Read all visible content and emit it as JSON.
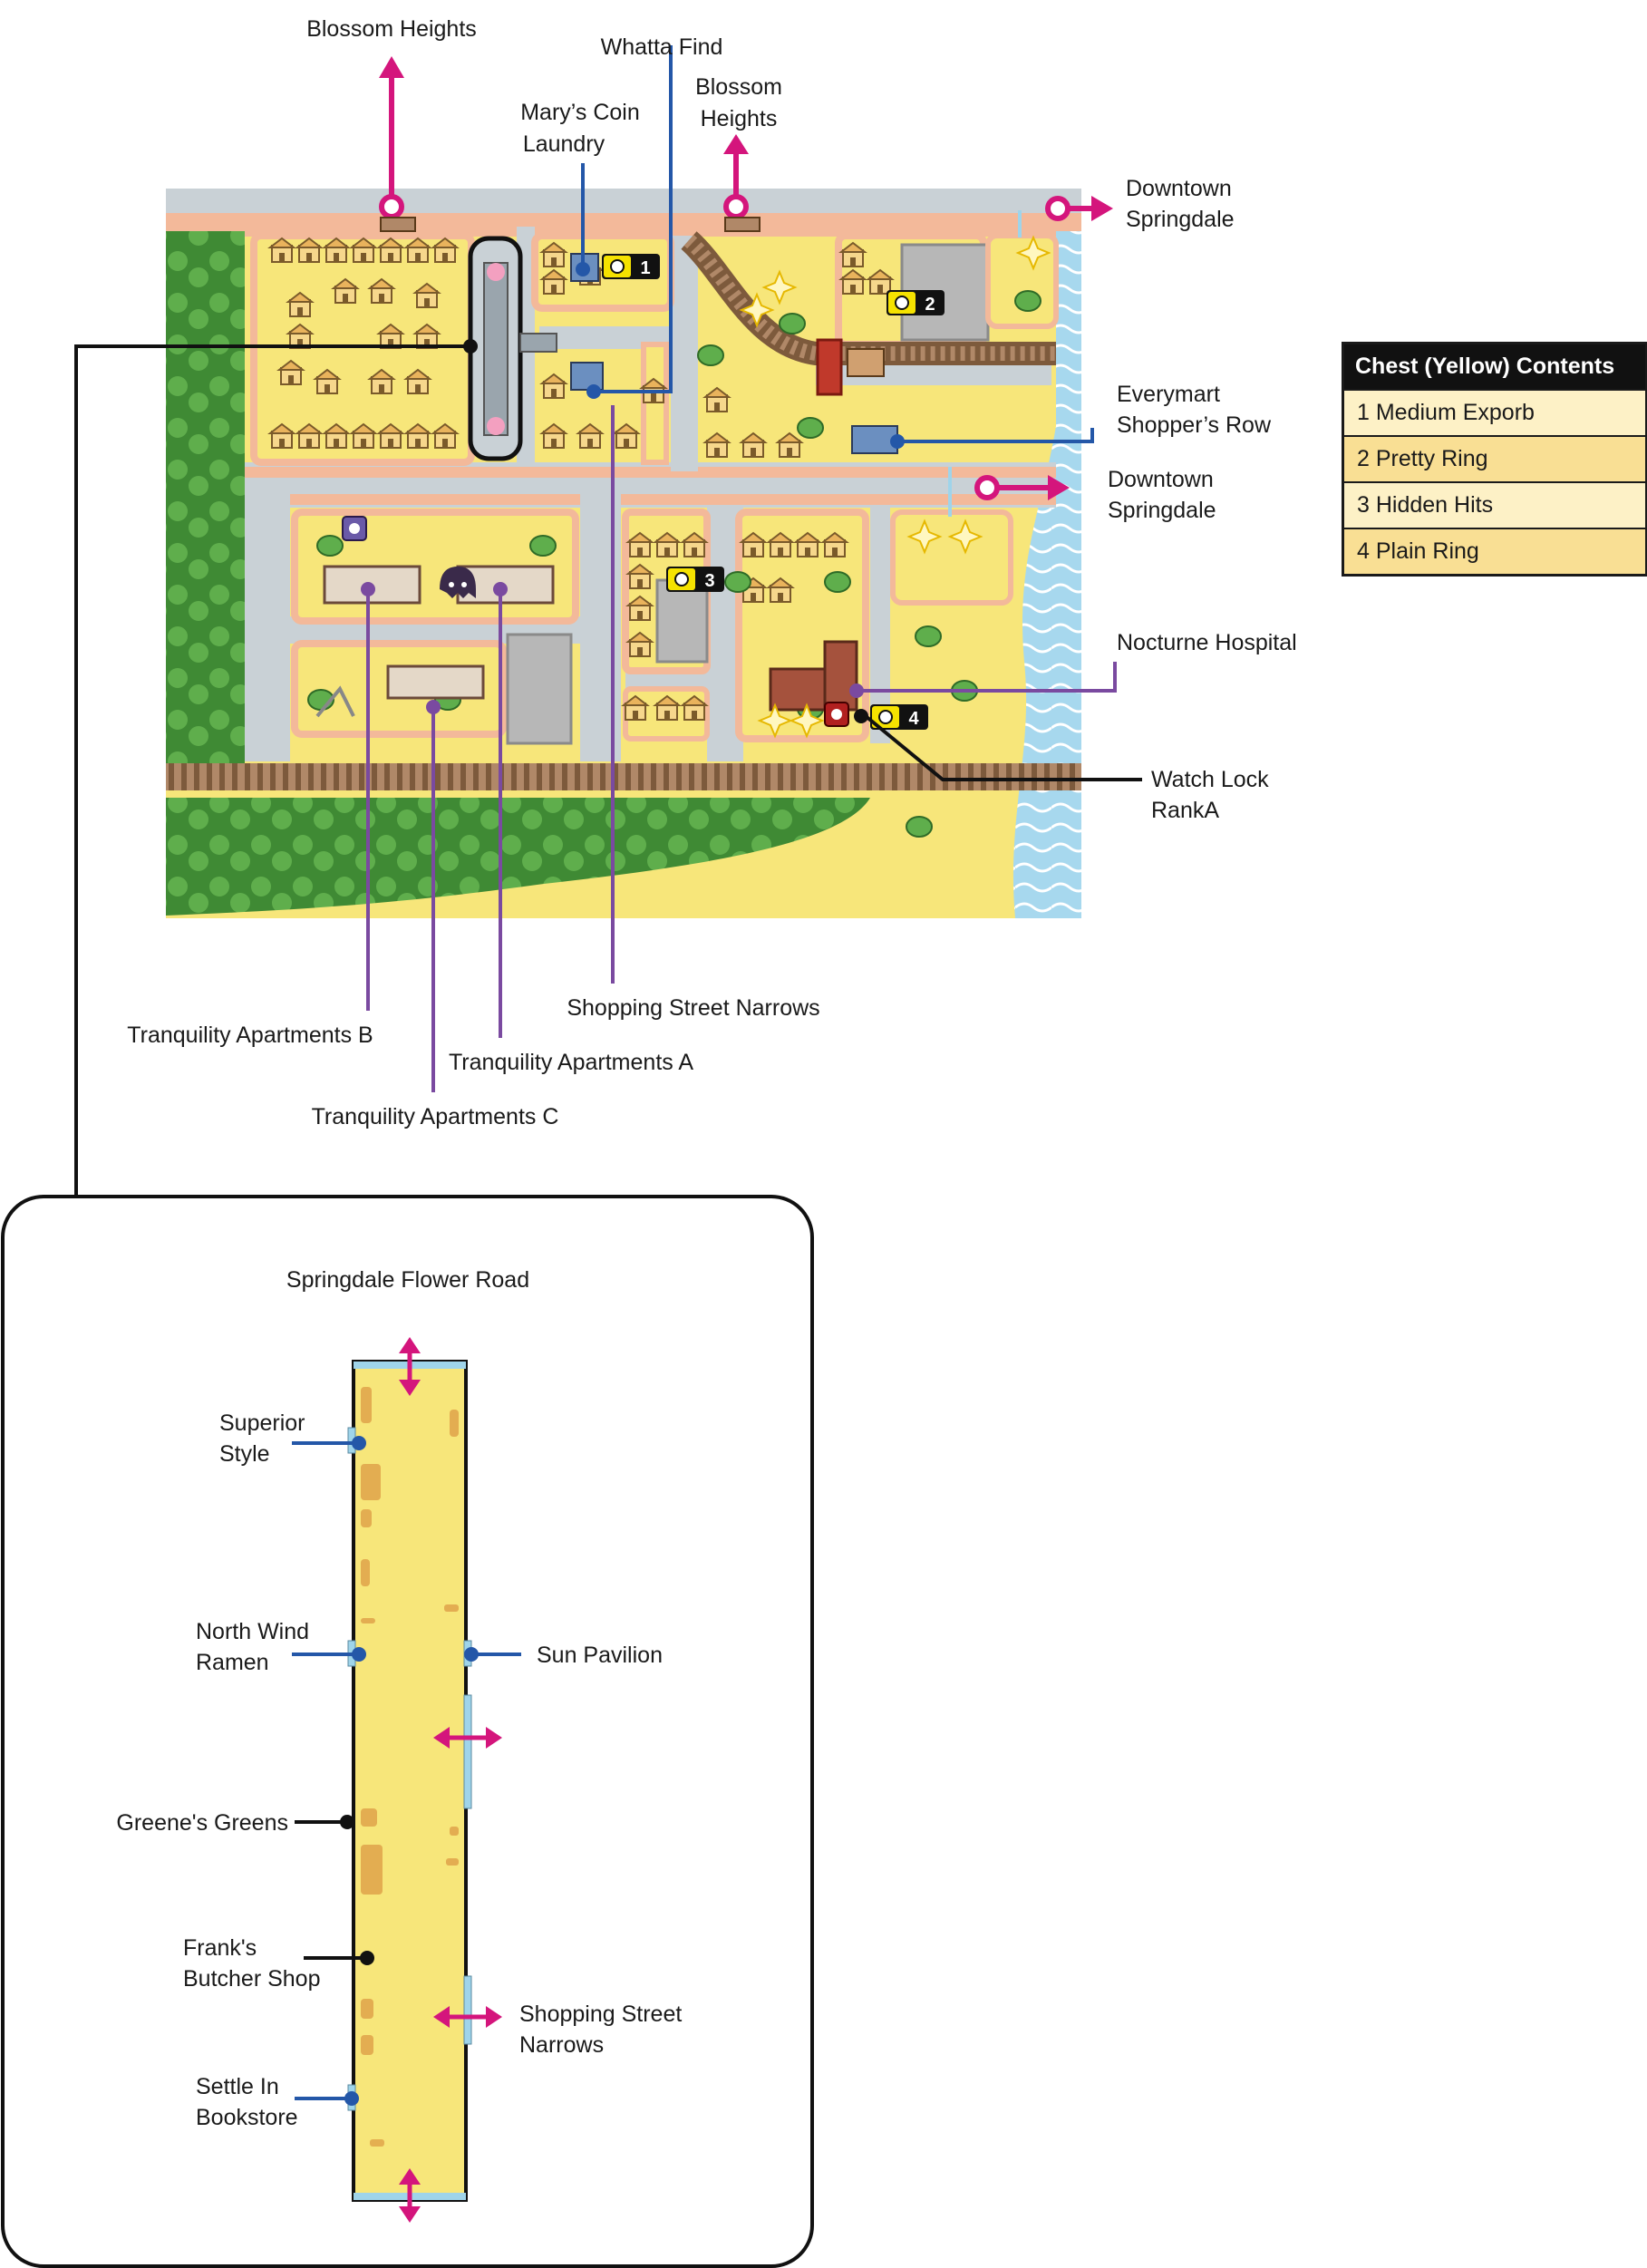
{
  "map": {
    "labels": {
      "blossom_heights_left": "Blossom Heights",
      "whatta_find": "Whatta Find",
      "blossom_heights_mid_1": "Blossom",
      "blossom_heights_mid_2": "Heights",
      "marys_coin_1": "Mary’s Coin",
      "marys_coin_2": "Laundry",
      "downtown_top_1": "Downtown",
      "downtown_top_2": "Springdale",
      "everymart_1": "Everymart",
      "everymart_2": "Shopper’s Row",
      "downtown_mid_1": "Downtown",
      "downtown_mid_2": "Springdale",
      "nocturne_hospital": "Nocturne Hospital",
      "watch_lock_1": "Watch Lock",
      "watch_lock_2": "RankA",
      "shopping_street_narrows": "Shopping Street Narrows",
      "tranquility_b": "Tranquility Apartments B",
      "tranquility_a": "Tranquility Apartments A",
      "tranquility_c": "Tranquility Apartments C"
    },
    "chests": [
      "1",
      "2",
      "3",
      "4"
    ]
  },
  "inset": {
    "title": "Springdale Flower Road",
    "labels": {
      "superior_1": "Superior",
      "superior_2": "Style",
      "north_wind_1": "North Wind",
      "north_wind_2": "Ramen",
      "sun_pavilion": "Sun Pavilion",
      "greenes": "Greene's Greens",
      "franks_1": "Frank's",
      "franks_2": "Butcher Shop",
      "narrows_1": "Shopping Street",
      "narrows_2": "Narrows",
      "settle_1": "Settle In",
      "settle_2": "Bookstore"
    }
  },
  "legend": {
    "title": "Chest (Yellow) Contents",
    "rows": [
      "1 Medium Exporb",
      "2 Pretty Ring",
      "3 Hidden Hits",
      "4 Plain Ring"
    ]
  },
  "colors": {
    "exit_arrow": "#d4157c",
    "pointer_blue": "#2457a8",
    "pointer_purple": "#7a4aa0",
    "ground": "#f7e67a",
    "road": "#c9d1d6",
    "sidewalk": "#f3b99a",
    "forest": "#4e9a3f",
    "water": "#9fd4ea",
    "rail": "#a07a5a"
  }
}
